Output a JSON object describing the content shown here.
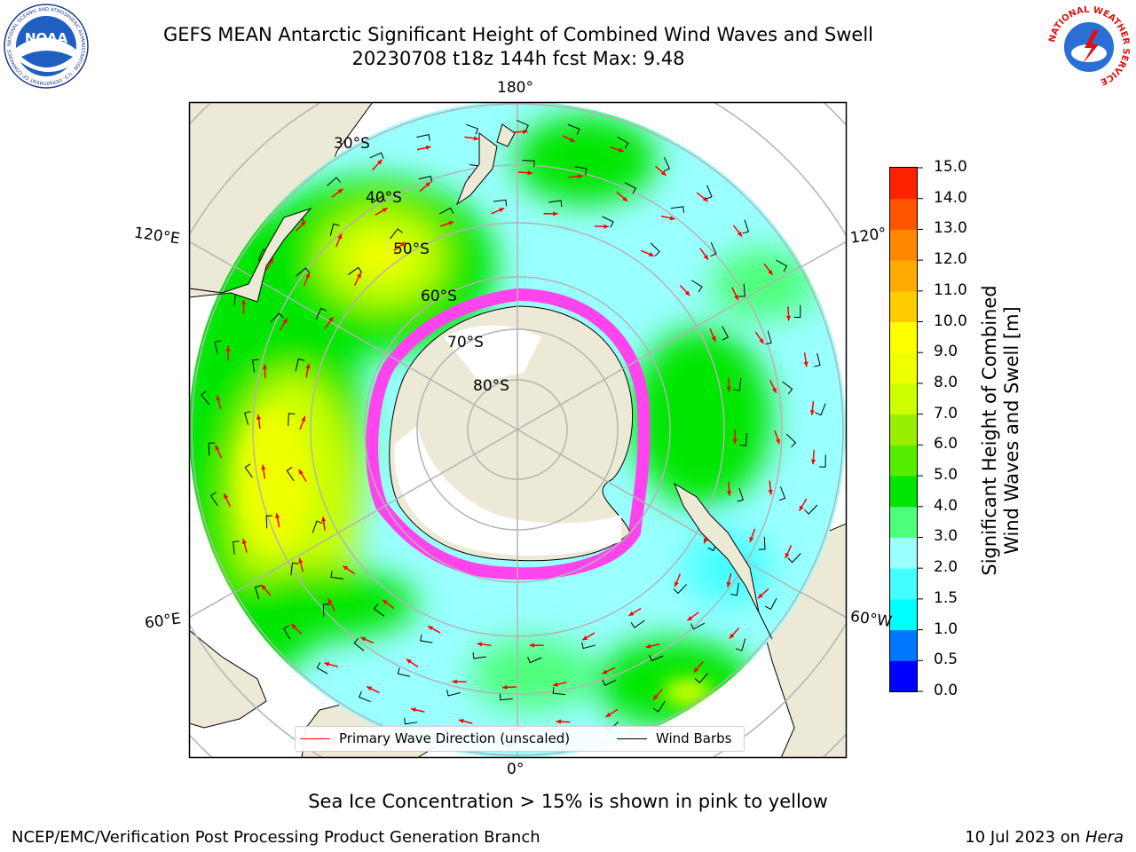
{
  "title": {
    "line1": "GEFS MEAN Antarctic Significant Height of Combined Wind Waves and Swell",
    "line2": "20230708 t18z 144h fcst   Max: 9.48"
  },
  "logos": {
    "left": "NOAA",
    "left_ring": "NATIONAL OCEANIC AND ATMOSPHERIC ADMINISTRATION · U.S. DEPARTMENT OF COMMERCE",
    "right": "NATIONAL WEATHER SERVICE"
  },
  "map": {
    "longitude_labels": {
      "top": "180°",
      "bottom": "0°",
      "left_upper": "120°E",
      "left_lower": "60°E",
      "right_upper": "120°",
      "right_lower": "60°W"
    },
    "latitude_labels": [
      "30°S",
      "40°S",
      "50°S",
      "60°S",
      "70°S",
      "80°S"
    ],
    "colors": {
      "land": "#ede9d7",
      "ocean_low": "#99ffff",
      "sea_ice": "#ff66ff",
      "grid": "#b3b3b3"
    }
  },
  "legend": {
    "wave": "Primary Wave Direction (unscaled)",
    "wind": "Wind Barbs",
    "wave_color": "#ff0000",
    "wind_color": "#000000"
  },
  "colorbar": {
    "label_line1": "Significant Height of Combined",
    "label_line2": "Wind Waves and Swell [m]",
    "ticks": [
      "15.0",
      "14.0",
      "13.0",
      "12.0",
      "11.0",
      "10.0",
      "9.0",
      "8.0",
      "7.0",
      "6.0",
      "5.0",
      "4.0",
      "3.0",
      "2.0",
      "1.5",
      "1.0",
      "0.5",
      "0.0"
    ],
    "colors": [
      "#0000ff",
      "#0077ff",
      "#00ffff",
      "#44ffff",
      "#99ffff",
      "#4dff7a",
      "#00e600",
      "#55ee00",
      "#99ee00",
      "#ccff00",
      "#eeff00",
      "#ffff00",
      "#ffcc00",
      "#ffaa00",
      "#ff8800",
      "#ff5500",
      "#ff2200"
    ]
  },
  "caption": "Sea Ice Concentration > 15% is shown in pink to yellow",
  "footer": {
    "left": "NCEP/EMC/Verification Post Processing Product Generation Branch",
    "right_prefix": "10 Jul 2023 on ",
    "right_host": "Hera"
  }
}
